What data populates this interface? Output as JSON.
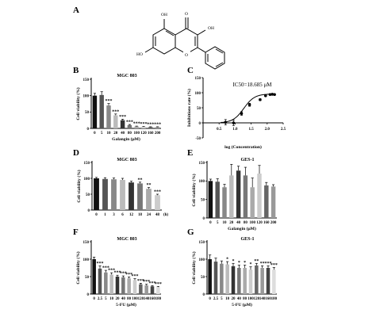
{
  "panel_labels": {
    "A": "A",
    "B": "B",
    "C": "C",
    "D": "D",
    "E": "E",
    "F": "F",
    "G": "G"
  },
  "structure": {
    "atom_labels": [
      "OH",
      "O",
      "OH",
      "HO",
      "O"
    ]
  },
  "chart_data": [
    {
      "id": "B",
      "type": "bar",
      "title": "MGC 803",
      "xlabel": "Galangin (μM)",
      "ylabel": "Cell viability (%)",
      "ylim": [
        0,
        150
      ],
      "yticks": [
        0,
        50,
        100,
        150
      ],
      "categories": [
        "0",
        "5",
        "10",
        "20",
        "40",
        "80",
        "100",
        "120",
        "160",
        "200"
      ],
      "values": [
        100,
        102,
        70,
        40,
        25,
        10,
        6,
        5,
        4,
        4
      ],
      "errors": [
        7,
        10,
        6,
        4,
        3,
        2,
        1,
        1,
        1,
        1
      ],
      "significance": [
        "",
        "",
        "***",
        "***",
        "***",
        "***",
        "***",
        "***",
        "***",
        "***"
      ],
      "colors": [
        "#111111",
        "#555555",
        "#888888",
        "#bbbbbb",
        "#333333",
        "#777777",
        "#aaaaaa",
        "#cccccc",
        "#666666",
        "#999999"
      ]
    },
    {
      "id": "C",
      "type": "line",
      "title": "",
      "xlabel": "log (Concentration)",
      "ylabel": "Inhibitions rate (%)",
      "annotation": "IC50=18.685 μM",
      "xlim": [
        0,
        2.5
      ],
      "ylim": [
        -50,
        150
      ],
      "xticks": [
        0.5,
        1.0,
        1.5,
        2.0,
        2.5
      ],
      "yticks": [
        -50,
        0,
        50,
        100,
        150
      ],
      "x": [
        0.7,
        0.95,
        1.2,
        1.45,
        1.78,
        1.95,
        2.09,
        2.16,
        2.23
      ],
      "y": [
        2,
        0,
        31,
        60,
        77,
        90,
        94,
        95,
        94
      ],
      "errors": [
        9,
        9,
        6,
        5,
        3,
        2,
        2,
        2,
        2
      ]
    },
    {
      "id": "D",
      "type": "bar",
      "title": "MGC 803",
      "xlabel": "",
      "ylabel": "Cell viability (%)",
      "ylim": [
        0,
        150
      ],
      "yticks": [
        0,
        50,
        100,
        150
      ],
      "categories": [
        "0",
        "1",
        "3",
        "6",
        "12",
        "18",
        "24",
        "48"
      ],
      "x_unit": "(h)",
      "values": [
        100,
        98,
        97,
        95,
        87,
        84,
        67,
        47
      ],
      "errors": [
        3,
        4,
        4,
        5,
        4,
        4,
        4,
        3
      ],
      "significance": [
        "",
        "",
        "",
        "",
        "",
        "**",
        "**",
        "***"
      ],
      "colors": [
        "#111111",
        "#555555",
        "#888888",
        "#bbbbbb",
        "#333333",
        "#777777",
        "#aaaaaa",
        "#cccccc"
      ]
    },
    {
      "id": "E",
      "type": "bar",
      "title": "GES-1",
      "xlabel": "Galangin (μM)",
      "ylabel": "Cell viability (%)",
      "ylim": [
        0,
        150
      ],
      "yticks": [
        0,
        50,
        100,
        150
      ],
      "categories": [
        "0",
        "5",
        "10",
        "20",
        "40",
        "80",
        "100",
        "120",
        "160",
        "200"
      ],
      "values": [
        100,
        98,
        83,
        115,
        128,
        115,
        83,
        120,
        88,
        85
      ],
      "errors": [
        5,
        8,
        8,
        30,
        12,
        22,
        25,
        22,
        8,
        5
      ],
      "significance": [
        "",
        "",
        "",
        "",
        "",
        "",
        "",
        "",
        "",
        ""
      ],
      "colors": [
        "#111111",
        "#555555",
        "#888888",
        "#bbbbbb",
        "#333333",
        "#777777",
        "#aaaaaa",
        "#cccccc",
        "#666666",
        "#999999"
      ]
    },
    {
      "id": "F",
      "type": "bar",
      "title": "MGC 803",
      "xlabel": "5-FU (μM)",
      "ylabel": "Cell viability (%)",
      "ylim": [
        0,
        150
      ],
      "yticks": [
        0,
        50,
        100,
        150
      ],
      "categories": [
        "0",
        "2.5",
        "5",
        "10",
        "20",
        "40",
        "80",
        "100",
        "120",
        "140",
        "160",
        "180"
      ],
      "values": [
        100,
        73,
        62,
        56,
        50,
        48,
        45,
        40,
        28,
        25,
        22,
        20
      ],
      "errors": [
        6,
        8,
        6,
        5,
        4,
        4,
        4,
        4,
        3,
        3,
        2,
        2
      ],
      "significance": [
        "",
        "***",
        "***",
        "***",
        "***",
        "***",
        "***",
        "***",
        "***",
        "***",
        "***",
        "***"
      ],
      "colors": [
        "#111111",
        "#555555",
        "#888888",
        "#bbbbbb",
        "#333333",
        "#777777",
        "#aaaaaa",
        "#cccccc",
        "#666666",
        "#999999",
        "#444444",
        "#dddddd"
      ]
    },
    {
      "id": "G",
      "type": "bar",
      "title": "GES-1",
      "xlabel": "5-FU (μM)",
      "ylabel": "Cell viability (%)",
      "ylim": [
        0,
        150
      ],
      "yticks": [
        0,
        50,
        100,
        150
      ],
      "categories": [
        "0",
        "2.5",
        "5",
        "10",
        "20",
        "40",
        "80",
        "100",
        "120",
        "140",
        "160",
        "180"
      ],
      "values": [
        100,
        93,
        87,
        85,
        80,
        75,
        75,
        70,
        82,
        75,
        75,
        70
      ],
      "errors": [
        12,
        10,
        8,
        8,
        8,
        8,
        8,
        8,
        6,
        6,
        6,
        6
      ],
      "significance": [
        "",
        "",
        "",
        "*",
        "*",
        "*",
        "*",
        "*",
        "**",
        "**",
        "***",
        "***"
      ],
      "colors": [
        "#111111",
        "#555555",
        "#888888",
        "#bbbbbb",
        "#333333",
        "#777777",
        "#aaaaaa",
        "#cccccc",
        "#666666",
        "#999999",
        "#444444",
        "#dddddd"
      ]
    }
  ]
}
